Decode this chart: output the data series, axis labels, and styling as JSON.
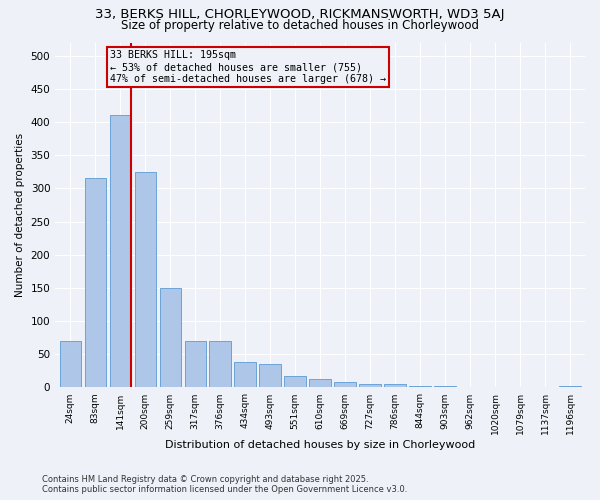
{
  "title1": "33, BERKS HILL, CHORLEYWOOD, RICKMANSWORTH, WD3 5AJ",
  "title2": "Size of property relative to detached houses in Chorleywood",
  "xlabel": "Distribution of detached houses by size in Chorleywood",
  "ylabel": "Number of detached properties",
  "categories": [
    "24sqm",
    "83sqm",
    "141sqm",
    "200sqm",
    "259sqm",
    "317sqm",
    "376sqm",
    "434sqm",
    "493sqm",
    "551sqm",
    "610sqm",
    "669sqm",
    "727sqm",
    "786sqm",
    "844sqm",
    "903sqm",
    "962sqm",
    "1020sqm",
    "1079sqm",
    "1137sqm",
    "1196sqm"
  ],
  "values": [
    70,
    315,
    410,
    325,
    150,
    70,
    70,
    38,
    35,
    18,
    12,
    8,
    5,
    5,
    2,
    2,
    0,
    0,
    0,
    0,
    2
  ],
  "bar_color": "#aec6e8",
  "bar_edge_color": "#5b9bd5",
  "vline_color": "#cc0000",
  "annotation_title": "33 BERKS HILL: 195sqm",
  "annotation_line1": "← 53% of detached houses are smaller (755)",
  "annotation_line2": "47% of semi-detached houses are larger (678) →",
  "ylim": [
    0,
    520
  ],
  "yticks": [
    0,
    50,
    100,
    150,
    200,
    250,
    300,
    350,
    400,
    450,
    500
  ],
  "footer_line1": "Contains HM Land Registry data © Crown copyright and database right 2025.",
  "footer_line2": "Contains public sector information licensed under the Open Government Licence v3.0.",
  "bg_color": "#eef2f8",
  "grid_color": "#ffffff",
  "title_fontsize": 9.5,
  "subtitle_fontsize": 8.5,
  "bar_width": 0.85
}
